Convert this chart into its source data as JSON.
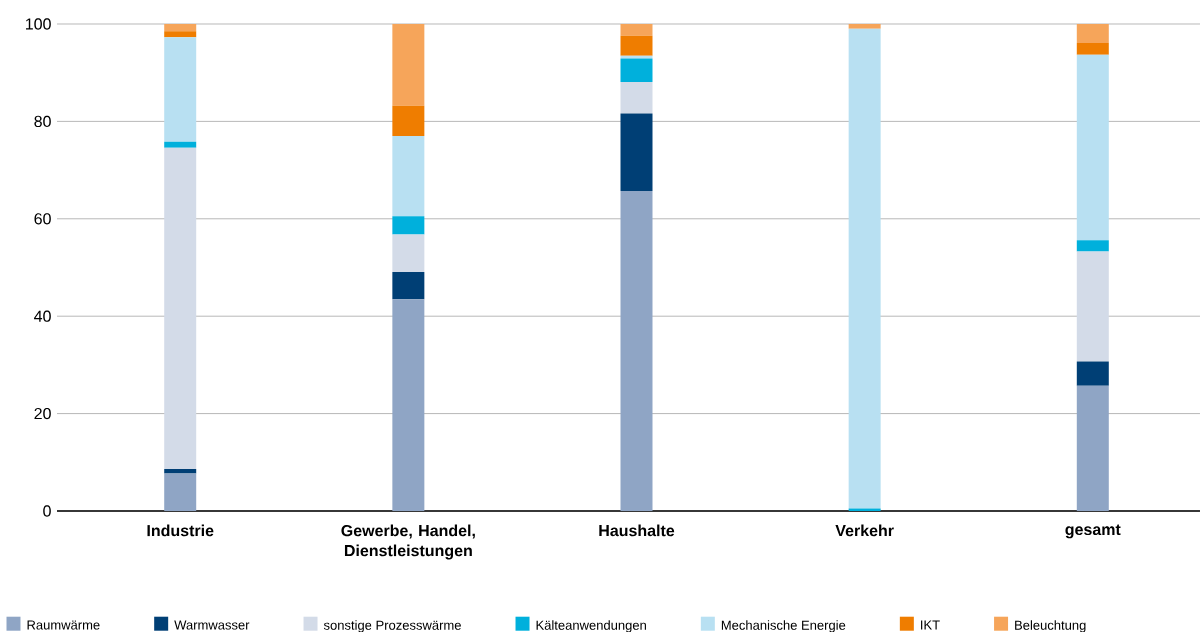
{
  "chart_data": {
    "type": "bar",
    "stacked": true,
    "grid": "y",
    "legend": "bottom",
    "categories": [
      "Industrie",
      "Gewerbe, Handel, Dienstleistungen",
      "Haushalte",
      "Verkehr",
      "gesamt"
    ],
    "ylim": [
      0,
      100
    ],
    "yticks": [
      0,
      20,
      40,
      60,
      80,
      100
    ],
    "series": [
      {
        "name": "Raumwärme",
        "color": "#8fa5c5",
        "values": [
          7.7,
          43.5,
          65.7,
          0,
          25.7
        ]
      },
      {
        "name": "Warmwasser",
        "color": "#003f75",
        "values": [
          0.9,
          5.6,
          15.9,
          0,
          5.0
        ]
      },
      {
        "name": "sonstige Prozesswärme",
        "color": "#d3dbe8",
        "values": [
          66.0,
          7.7,
          6.5,
          0,
          22.6
        ]
      },
      {
        "name": "Kälteanwendungen",
        "color": "#00b0dc",
        "values": [
          1.2,
          3.7,
          4.8,
          0.5,
          2.3
        ]
      },
      {
        "name": "Mechanische Energie",
        "color": "#b8e0f2",
        "values": [
          21.5,
          16.5,
          0.6,
          98.5,
          38.1
        ]
      },
      {
        "name": "IKT",
        "color": "#ef7d00",
        "values": [
          1.2,
          6.2,
          4.1,
          0,
          2.4
        ]
      },
      {
        "name": "Beleuchtung",
        "color": "#f6a55a",
        "values": [
          1.5,
          16.8,
          2.4,
          1.0,
          3.9
        ]
      }
    ]
  }
}
